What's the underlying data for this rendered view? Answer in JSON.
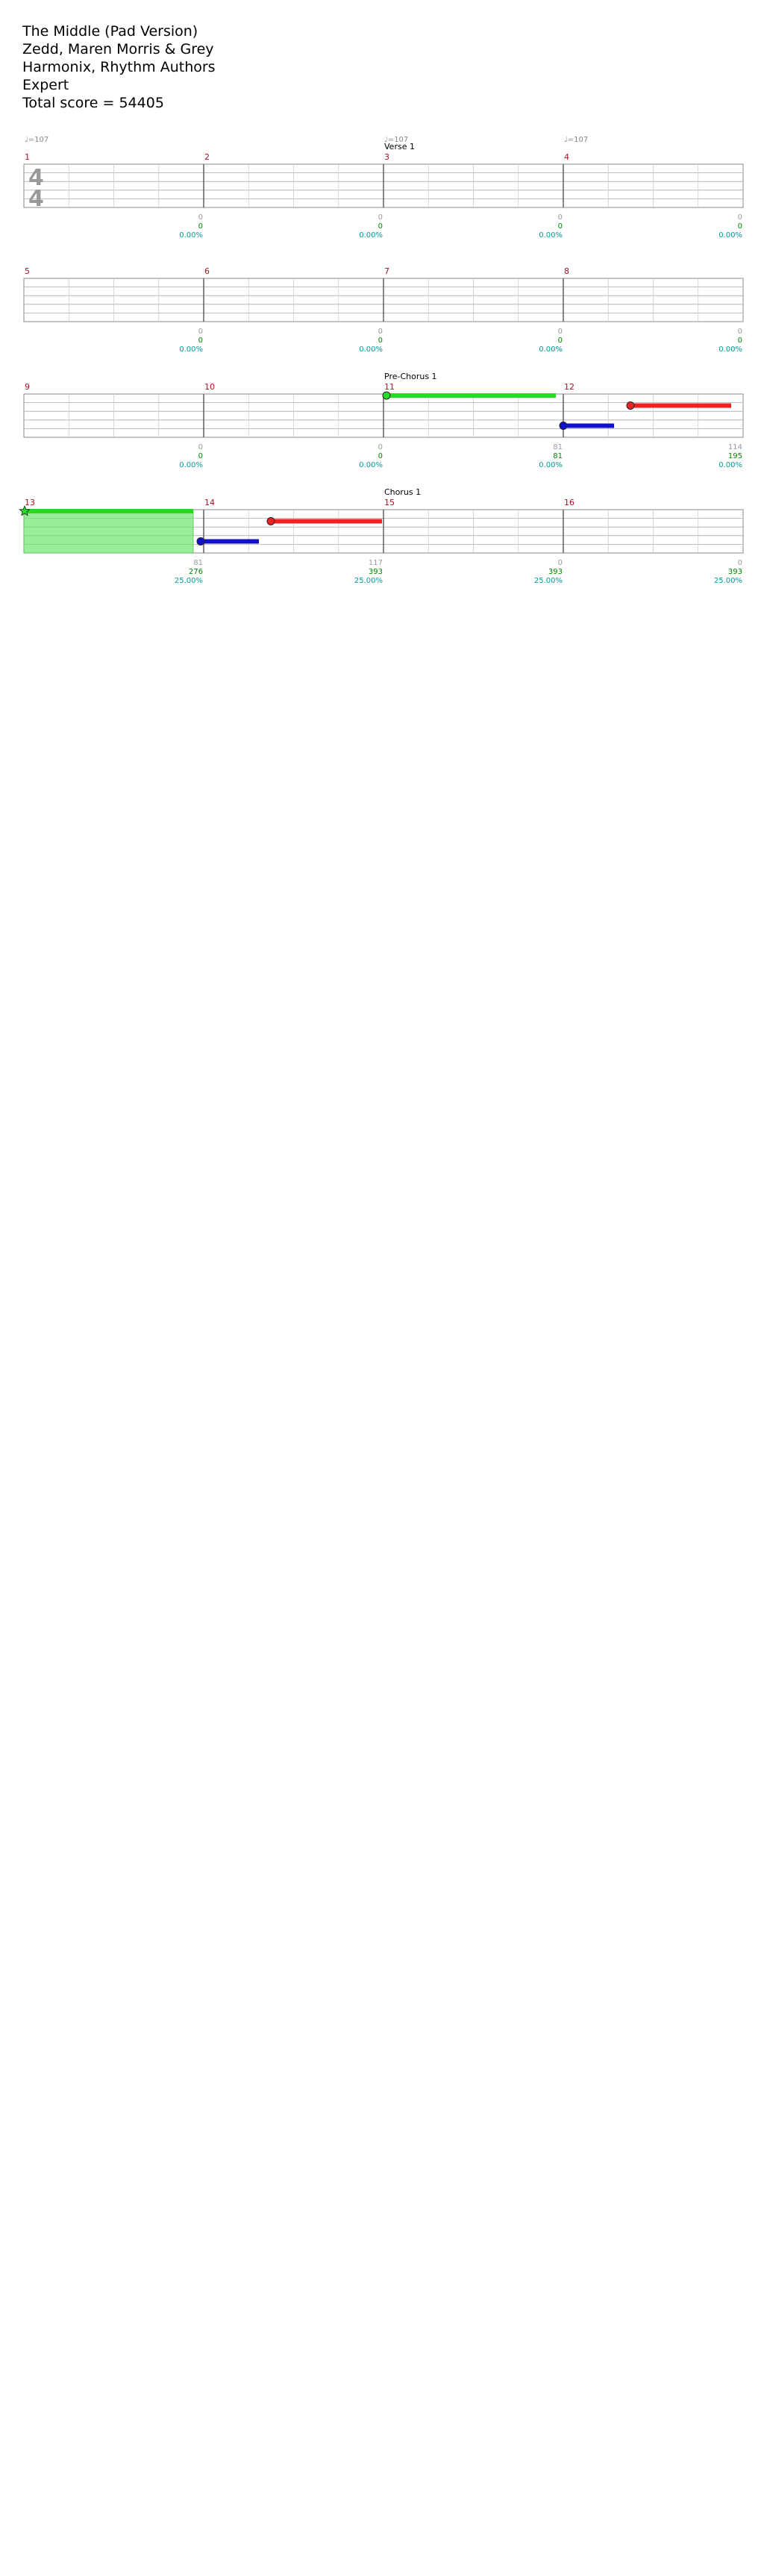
{
  "song": {
    "title": "The Middle (Pad Version)",
    "artist": "Zedd, Maren Morris & Grey",
    "authors": "Harmonix, Rhythm Authors",
    "difficulty": "Expert",
    "total_score": "Total score = 54405"
  },
  "time_signature": {
    "top": "4",
    "bottom": "4"
  },
  "colors": {
    "green": "#22dd22",
    "red": "#ee2222",
    "yellow": "#f2e60c",
    "blue": "#1111cc",
    "orange": "#ff9900",
    "measure_number": "#aa1122",
    "stat": "#009999",
    "mult": "#999999",
    "star_power_fill": "#99ee99",
    "overdrive_fill": "#8888ee",
    "staff_line": "#aaaaaa"
  },
  "rows": [
    {
      "tempo": [
        {
          "measure": "1",
          "label": "♩=107"
        },
        {
          "measure": "3",
          "label": "♩=107"
        },
        {
          "measure": "4",
          "label": "♩=107"
        }
      ],
      "section": {
        "measure": "3",
        "label": "Verse 1"
      },
      "measures": [
        {
          "number": "1",
          "mult": "0",
          "score": "0",
          "pct": "0.00%"
        },
        {
          "number": "2",
          "mult": "0",
          "score": "0",
          "pct": "0.00%"
        },
        {
          "number": "3",
          "mult": "0",
          "score": "0",
          "pct": "0.00%"
        },
        {
          "number": "4",
          "mult": "0",
          "score": "0",
          "pct": "0.00%"
        }
      ]
    },
    {
      "measures": [
        {
          "number": "5",
          "mult": "0",
          "score": "0",
          "pct": "0.00%"
        },
        {
          "number": "6",
          "mult": "0",
          "score": "0",
          "pct": "0.00%"
        },
        {
          "number": "7",
          "mult": "0",
          "score": "0",
          "pct": "0.00%"
        },
        {
          "number": "8",
          "mult": "0",
          "score": "0",
          "pct": "0.00%"
        }
      ]
    },
    {
      "section": {
        "measure": "11",
        "label": "Pre-Chorus 1"
      },
      "measures": [
        {
          "number": "9",
          "mult": "0",
          "score": "0",
          "pct": "0.00%"
        },
        {
          "number": "10",
          "mult": "0",
          "score": "0",
          "pct": "0.00%"
        },
        {
          "number": "11",
          "mult": "81",
          "score": "81",
          "pct": "0.00%"
        },
        {
          "number": "12",
          "mult": "114",
          "score": "195",
          "pct": "0.00%"
        }
      ]
    },
    {
      "section": {
        "measure": "15",
        "label": "Chorus 1"
      },
      "measures": [
        {
          "number": "13",
          "mult": "81",
          "score": "276",
          "pct": "25.00%"
        },
        {
          "number": "14",
          "mult": "117",
          "score": "393",
          "pct": "25.00%"
        },
        {
          "number": "15",
          "mult": "0",
          "score": "393",
          "pct": "25.00%"
        },
        {
          "number": "16",
          "mult": "0",
          "score": "393",
          "pct": "25.00%"
        }
      ]
    }
  ]
}
